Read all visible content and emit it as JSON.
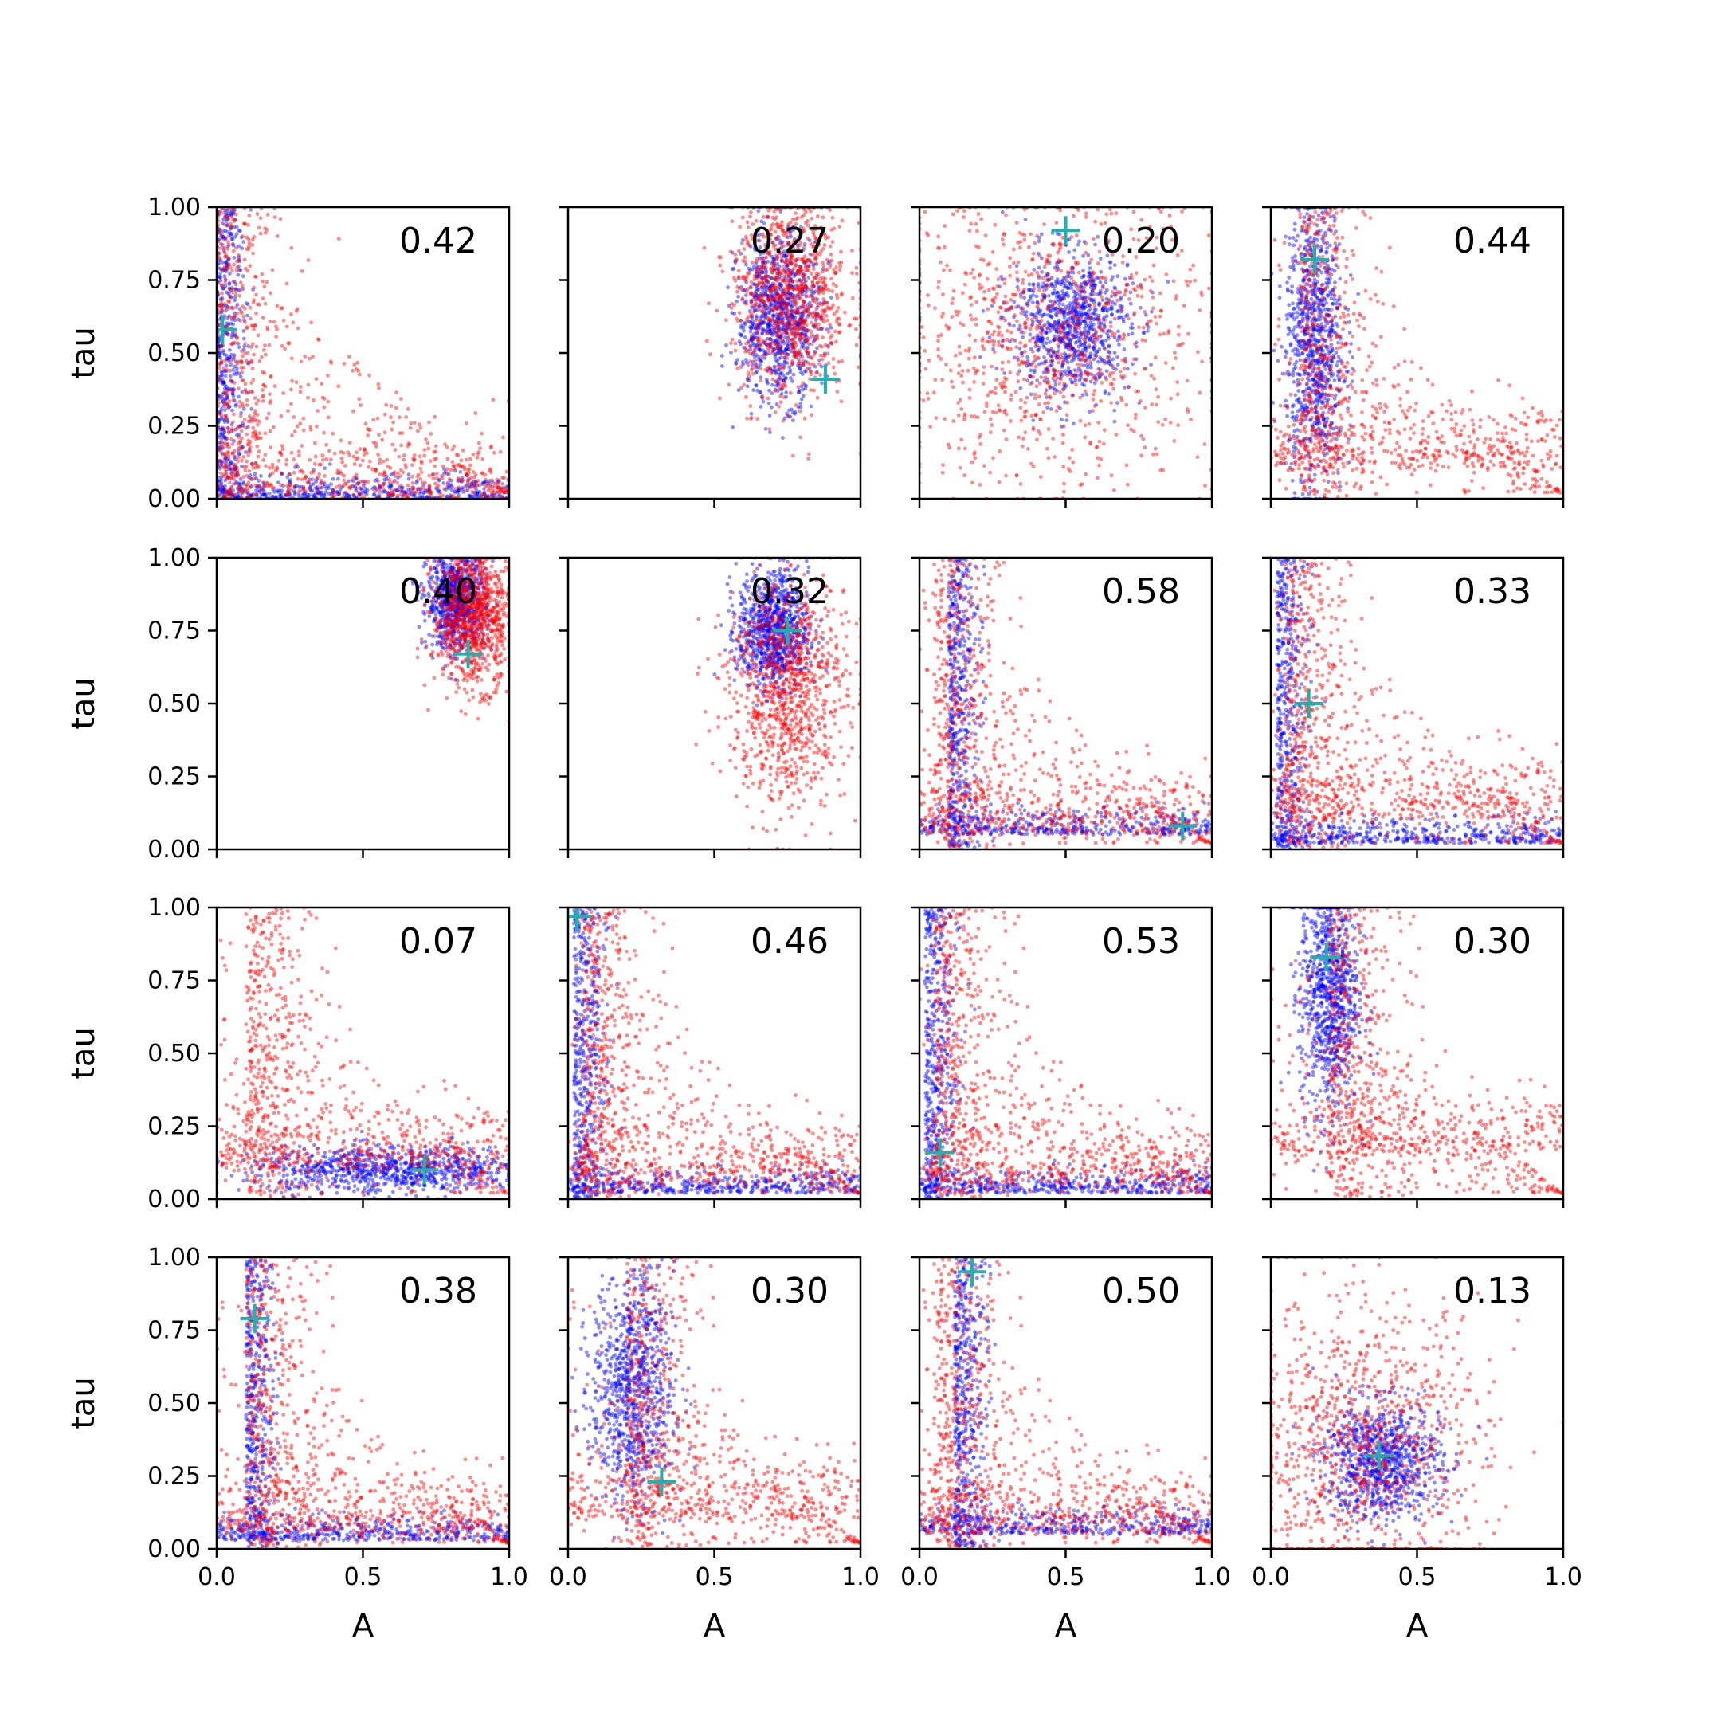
{
  "colors": {
    "series_a": "#ff0000",
    "series_b": "#0000ff",
    "marker": "#20b2aa"
  },
  "chart_data": {
    "type": "scatter",
    "grid": false,
    "xlabel": "A",
    "ylabel": "tau",
    "xlim": [
      0.0,
      1.0
    ],
    "ylim": [
      0.0,
      1.0
    ],
    "x_ticks": [
      "0.0",
      "0.5",
      "1.0"
    ],
    "y_ticks": [
      "0.00",
      "0.25",
      "0.50",
      "0.75",
      "1.00"
    ],
    "panels": [
      {
        "annotation": "0.42",
        "marker": [
          0.02,
          0.58
        ],
        "red": {
          "shape": "lcurve",
          "cx": 0.0,
          "cy": 0.0
        },
        "blue": {
          "shape": "lcurve_tight",
          "cx": 0.0,
          "cy": 0.0
        }
      },
      {
        "annotation": "0.27",
        "marker": [
          0.88,
          0.41
        ],
        "red": {
          "shape": "blob",
          "cx": 0.76,
          "cy": 0.7,
          "sx": 0.1,
          "sy": 0.18
        },
        "blue": {
          "shape": "blob",
          "cx": 0.72,
          "cy": 0.62,
          "sx": 0.07,
          "sy": 0.14
        }
      },
      {
        "annotation": "0.20",
        "marker": [
          0.5,
          0.92
        ],
        "red": {
          "shape": "blob",
          "cx": 0.45,
          "cy": 0.55,
          "sx": 0.28,
          "sy": 0.25
        },
        "blue": {
          "shape": "blob",
          "cx": 0.52,
          "cy": 0.6,
          "sx": 0.1,
          "sy": 0.12
        }
      },
      {
        "annotation": "0.44",
        "marker": [
          0.15,
          0.82
        ],
        "red": {
          "shape": "lcurve",
          "cx": 0.1,
          "cy": 0.1
        },
        "blue": {
          "shape": "column",
          "cx": 0.15,
          "cy": 0.55,
          "sx": 0.05,
          "sy": 0.25
        }
      },
      {
        "annotation": "0.40",
        "marker": [
          0.86,
          0.67
        ],
        "red": {
          "shape": "blob",
          "cx": 0.88,
          "cy": 0.8,
          "sx": 0.07,
          "sy": 0.12
        },
        "blue": {
          "shape": "blob",
          "cx": 0.82,
          "cy": 0.85,
          "sx": 0.05,
          "sy": 0.08
        }
      },
      {
        "annotation": "0.32",
        "marker": [
          0.75,
          0.75
        ],
        "red": {
          "shape": "blob",
          "cx": 0.75,
          "cy": 0.55,
          "sx": 0.1,
          "sy": 0.2
        },
        "blue": {
          "shape": "blob",
          "cx": 0.7,
          "cy": 0.75,
          "sx": 0.06,
          "sy": 0.1
        }
      },
      {
        "annotation": "0.58",
        "marker": [
          0.9,
          0.08
        ],
        "red": {
          "shape": "lcurve",
          "cx": 0.05,
          "cy": 0.05
        },
        "blue": {
          "shape": "lcurve_tight",
          "cx": 0.1,
          "cy": 0.05
        }
      },
      {
        "annotation": "0.33",
        "marker": [
          0.13,
          0.5
        ],
        "red": {
          "shape": "lcurve",
          "cx": 0.05,
          "cy": 0.1
        },
        "blue": {
          "shape": "lcurve_tight",
          "cx": 0.02,
          "cy": 0.02
        }
      },
      {
        "annotation": "0.07",
        "marker": [
          0.71,
          0.1
        ],
        "red": {
          "shape": "lcurve",
          "cx": 0.1,
          "cy": 0.1
        },
        "blue": {
          "shape": "band",
          "cx": 0.6,
          "cy": 0.1,
          "sx": 0.25,
          "sy": 0.04
        }
      },
      {
        "annotation": "0.46",
        "marker": [
          0.03,
          0.97
        ],
        "red": {
          "shape": "lcurve",
          "cx": 0.05,
          "cy": 0.05
        },
        "blue": {
          "shape": "lcurve_tight",
          "cx": 0.02,
          "cy": 0.02
        }
      },
      {
        "annotation": "0.53",
        "marker": [
          0.07,
          0.16
        ],
        "red": {
          "shape": "lcurve",
          "cx": 0.05,
          "cy": 0.05
        },
        "blue": {
          "shape": "lcurve_tight",
          "cx": 0.02,
          "cy": 0.02
        }
      },
      {
        "annotation": "0.30",
        "marker": [
          0.19,
          0.83
        ],
        "red": {
          "shape": "lcurve",
          "cx": 0.2,
          "cy": 0.15
        },
        "blue": {
          "shape": "column",
          "cx": 0.2,
          "cy": 0.7,
          "sx": 0.05,
          "sy": 0.2
        }
      },
      {
        "annotation": "0.38",
        "marker": [
          0.13,
          0.79
        ],
        "red": {
          "shape": "lcurve",
          "cx": 0.1,
          "cy": 0.05
        },
        "blue": {
          "shape": "lcurve_tight",
          "cx": 0.1,
          "cy": 0.03
        }
      },
      {
        "annotation": "0.30",
        "marker": [
          0.32,
          0.23
        ],
        "red": {
          "shape": "lcurve",
          "cx": 0.2,
          "cy": 0.1
        },
        "blue": {
          "shape": "column",
          "cx": 0.22,
          "cy": 0.55,
          "sx": 0.07,
          "sy": 0.2
        }
      },
      {
        "annotation": "0.50",
        "marker": [
          0.18,
          0.95
        ],
        "red": {
          "shape": "lcurve",
          "cx": 0.05,
          "cy": 0.05
        },
        "blue": {
          "shape": "lcurve_tight",
          "cx": 0.12,
          "cy": 0.05
        }
      },
      {
        "annotation": "0.13",
        "marker": [
          0.37,
          0.32
        ],
        "red": {
          "shape": "blob",
          "cx": 0.3,
          "cy": 0.35,
          "sx": 0.22,
          "sy": 0.25
        },
        "blue": {
          "shape": "blob",
          "cx": 0.38,
          "cy": 0.3,
          "sx": 0.1,
          "sy": 0.1
        }
      }
    ]
  }
}
